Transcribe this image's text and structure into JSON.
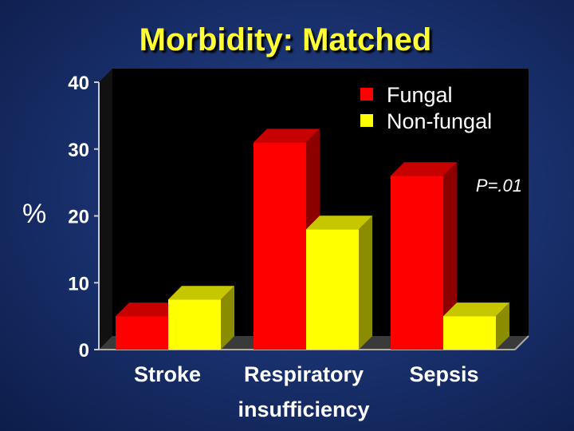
{
  "chart_data": {
    "type": "bar",
    "title": "Morbidity: Matched",
    "ylabel": "%",
    "xlabel": "",
    "ylim": [
      0,
      40
    ],
    "yticks": [
      0,
      10,
      20,
      30,
      40
    ],
    "categories": [
      [
        "Stroke"
      ],
      [
        "Respiratory",
        "insufficiency"
      ],
      [
        "Sepsis"
      ]
    ],
    "series": [
      {
        "name": "Fungal",
        "values": [
          5,
          31,
          26
        ],
        "color": "#ff0000"
      },
      {
        "name": "Non-fungal",
        "values": [
          7.5,
          18,
          5
        ],
        "color": "#ffff00"
      }
    ],
    "annotation": "P=.01",
    "legend_position": "top-right",
    "grid": false,
    "plot_background": "#000000"
  }
}
